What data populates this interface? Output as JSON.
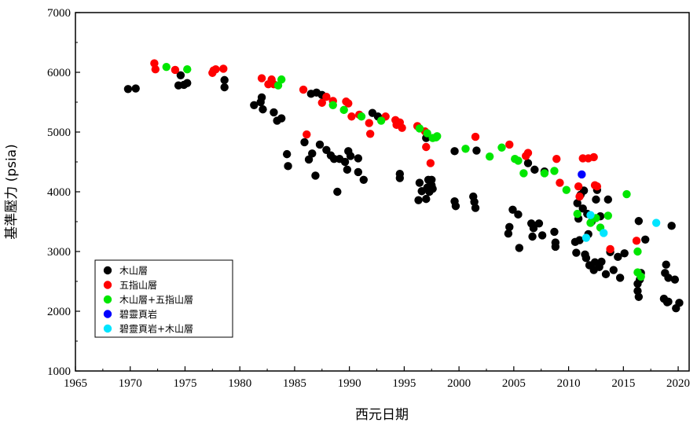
{
  "chart_data": {
    "type": "scatter",
    "xlabel": "西元日期",
    "ylabel": "基準壓力 (psia)",
    "xlim": [
      1965,
      2021
    ],
    "ylim": [
      1000,
      7000
    ],
    "xticks": [
      1965,
      1970,
      1975,
      1980,
      1985,
      1990,
      1995,
      2000,
      2005,
      2010,
      2015,
      2020
    ],
    "yticks": [
      1000,
      2000,
      3000,
      4000,
      5000,
      6000,
      7000
    ],
    "legend_position": "bottom-left",
    "grid": false,
    "series": [
      {
        "name": "木山層",
        "color": "#000000",
        "points": [
          [
            1969.8,
            5720
          ],
          [
            1970.5,
            5730
          ],
          [
            1974.4,
            5780
          ],
          [
            1974.6,
            5950
          ],
          [
            1974.9,
            5790
          ],
          [
            1975.2,
            5820
          ],
          [
            1978.6,
            5870
          ],
          [
            1978.6,
            5750
          ],
          [
            1981.3,
            5450
          ],
          [
            1981.9,
            5500
          ],
          [
            1982.0,
            5580
          ],
          [
            1982.1,
            5380
          ],
          [
            1983.1,
            5330
          ],
          [
            1983.4,
            5190
          ],
          [
            1983.8,
            5230
          ],
          [
            1984.3,
            4630
          ],
          [
            1984.4,
            4430
          ],
          [
            1985.9,
            4830
          ],
          [
            1986.3,
            4540
          ],
          [
            1986.6,
            4640
          ],
          [
            1986.9,
            4270
          ],
          [
            1987.3,
            4790
          ],
          [
            1987.9,
            4700
          ],
          [
            1986.5,
            5640
          ],
          [
            1987.0,
            5660
          ],
          [
            1987.5,
            5620
          ],
          [
            1988.3,
            4610
          ],
          [
            1988.6,
            4550
          ],
          [
            1988.9,
            4000
          ],
          [
            1989.1,
            4550
          ],
          [
            1989.6,
            4500
          ],
          [
            1989.8,
            4370
          ],
          [
            1989.9,
            4680
          ],
          [
            1990.1,
            4600
          ],
          [
            1990.8,
            4560
          ],
          [
            1990.8,
            4330
          ],
          [
            1991.3,
            4200
          ],
          [
            1992.1,
            5320
          ],
          [
            1992.6,
            5260
          ],
          [
            1994.6,
            4300
          ],
          [
            1994.6,
            4230
          ],
          [
            1996.3,
            3860
          ],
          [
            1996.4,
            4150
          ],
          [
            1996.6,
            4010
          ],
          [
            1997.0,
            3880
          ],
          [
            1997.1,
            4070
          ],
          [
            1997.2,
            4200
          ],
          [
            1997.3,
            4000
          ],
          [
            1997.5,
            4110
          ],
          [
            1997.5,
            4200
          ],
          [
            1997.6,
            4050
          ],
          [
            1997.0,
            4900
          ],
          [
            1999.6,
            4680
          ],
          [
            1999.6,
            3840
          ],
          [
            1999.7,
            3760
          ],
          [
            2001.3,
            3920
          ],
          [
            2001.4,
            3830
          ],
          [
            2001.5,
            3730
          ],
          [
            2001.6,
            4690
          ],
          [
            2004.5,
            3300
          ],
          [
            2004.6,
            3410
          ],
          [
            2004.9,
            3700
          ],
          [
            2005.4,
            3620
          ],
          [
            2005.5,
            3060
          ],
          [
            2006.3,
            4480
          ],
          [
            2006.6,
            3470
          ],
          [
            2006.7,
            3250
          ],
          [
            2006.8,
            3390
          ],
          [
            2006.9,
            4370
          ],
          [
            2007.3,
            3470
          ],
          [
            2007.6,
            3270
          ],
          [
            2007.8,
            4340
          ],
          [
            2008.7,
            3330
          ],
          [
            2008.8,
            3150
          ],
          [
            2008.8,
            3080
          ],
          [
            2010.6,
            3160
          ],
          [
            2010.7,
            2980
          ],
          [
            2010.8,
            3810
          ],
          [
            2010.9,
            3550
          ],
          [
            2011.0,
            3190
          ],
          [
            2011.1,
            3950
          ],
          [
            2011.3,
            3720
          ],
          [
            2011.4,
            4020
          ],
          [
            2011.5,
            2950
          ],
          [
            2011.6,
            2890
          ],
          [
            2011.7,
            3630
          ],
          [
            2011.8,
            3290
          ],
          [
            2011.9,
            2770
          ],
          [
            2012.1,
            3500
          ],
          [
            2012.3,
            2690
          ],
          [
            2012.4,
            2820
          ],
          [
            2012.5,
            3870
          ],
          [
            2012.6,
            4030
          ],
          [
            2012.8,
            2740
          ],
          [
            2012.9,
            3590
          ],
          [
            2013.0,
            2830
          ],
          [
            2013.4,
            2620
          ],
          [
            2013.6,
            3870
          ],
          [
            2013.8,
            2990
          ],
          [
            2014.1,
            2690
          ],
          [
            2014.5,
            2910
          ],
          [
            2014.7,
            2560
          ],
          [
            2015.1,
            2970
          ],
          [
            2016.3,
            2340
          ],
          [
            2016.3,
            2460
          ],
          [
            2016.4,
            2240
          ],
          [
            2016.6,
            2640
          ],
          [
            2016.5,
            2530
          ],
          [
            2017.0,
            3200
          ],
          [
            2016.4,
            3510
          ],
          [
            2018.7,
            2210
          ],
          [
            2018.8,
            2640
          ],
          [
            2018.9,
            2780
          ],
          [
            2019.0,
            2150
          ],
          [
            2019.1,
            2560
          ],
          [
            2019.4,
            3430
          ],
          [
            2019.7,
            2530
          ],
          [
            2019.8,
            2050
          ],
          [
            2020.1,
            2140
          ],
          [
            2019.1,
            2160
          ]
        ]
      },
      {
        "name": "五指山層",
        "color": "#ff0000",
        "points": [
          [
            1972.2,
            6150
          ],
          [
            1972.3,
            6050
          ],
          [
            1974.1,
            6040
          ],
          [
            1977.5,
            5990
          ],
          [
            1977.6,
            6030
          ],
          [
            1977.8,
            6050
          ],
          [
            1978.5,
            6060
          ],
          [
            1982.0,
            5900
          ],
          [
            1982.6,
            5800
          ],
          [
            1982.9,
            5880
          ],
          [
            1983.1,
            5800
          ],
          [
            1985.8,
            5710
          ],
          [
            1986.1,
            4960
          ],
          [
            1987.5,
            5490
          ],
          [
            1987.9,
            5590
          ],
          [
            1988.5,
            5520
          ],
          [
            1989.7,
            5510
          ],
          [
            1989.9,
            5480
          ],
          [
            1990.2,
            5260
          ],
          [
            1990.9,
            5290
          ],
          [
            1991.8,
            5150
          ],
          [
            1991.9,
            4970
          ],
          [
            1993.3,
            5260
          ],
          [
            1994.2,
            5200
          ],
          [
            1994.3,
            5120
          ],
          [
            1994.6,
            5160
          ],
          [
            1994.8,
            5070
          ],
          [
            1996.2,
            5100
          ],
          [
            1996.9,
            5010
          ],
          [
            1997.0,
            4750
          ],
          [
            1997.4,
            4480
          ],
          [
            2001.5,
            4920
          ],
          [
            2004.6,
            4790
          ],
          [
            2006.1,
            4600
          ],
          [
            2006.3,
            4650
          ],
          [
            2008.9,
            4550
          ],
          [
            2009.2,
            4150
          ],
          [
            2010.9,
            4090
          ],
          [
            2011.0,
            3920
          ],
          [
            2011.3,
            4560
          ],
          [
            2011.8,
            4560
          ],
          [
            2012.3,
            4580
          ],
          [
            2012.4,
            4110
          ],
          [
            2012.6,
            4090
          ],
          [
            2013.8,
            3040
          ],
          [
            2016.2,
            3180
          ]
        ]
      },
      {
        "name": "木山層+五指山層",
        "color": "#00e600",
        "points": [
          [
            1973.3,
            6090
          ],
          [
            1975.2,
            6050
          ],
          [
            1983.5,
            5780
          ],
          [
            1983.8,
            5880
          ],
          [
            1988.5,
            5450
          ],
          [
            1989.5,
            5370
          ],
          [
            1991.1,
            5260
          ],
          [
            1992.9,
            5190
          ],
          [
            1996.4,
            5060
          ],
          [
            1997.1,
            4980
          ],
          [
            1997.6,
            4900
          ],
          [
            1997.9,
            4910
          ],
          [
            1998.0,
            4930
          ],
          [
            2000.6,
            4720
          ],
          [
            2002.8,
            4590
          ],
          [
            2003.9,
            4740
          ],
          [
            2005.1,
            4550
          ],
          [
            2005.4,
            4520
          ],
          [
            2005.9,
            4310
          ],
          [
            2007.8,
            4310
          ],
          [
            2008.7,
            4350
          ],
          [
            2009.8,
            4030
          ],
          [
            2010.8,
            3630
          ],
          [
            2012.0,
            3480
          ],
          [
            2012.5,
            3560
          ],
          [
            2012.9,
            3400
          ],
          [
            2013.6,
            3600
          ],
          [
            2015.3,
            3960
          ],
          [
            2016.3,
            3000
          ],
          [
            2016.3,
            2650
          ],
          [
            2016.6,
            2580
          ]
        ]
      },
      {
        "name": "碧靈頁岩",
        "color": "#0000ff",
        "points": [
          [
            2011.2,
            4290
          ]
        ]
      },
      {
        "name": "碧靈頁岩+木山層",
        "color": "#00e5ff",
        "points": [
          [
            2011.6,
            3230
          ],
          [
            2012.0,
            3610
          ],
          [
            2013.2,
            3310
          ],
          [
            2018.0,
            3480
          ]
        ]
      }
    ]
  }
}
